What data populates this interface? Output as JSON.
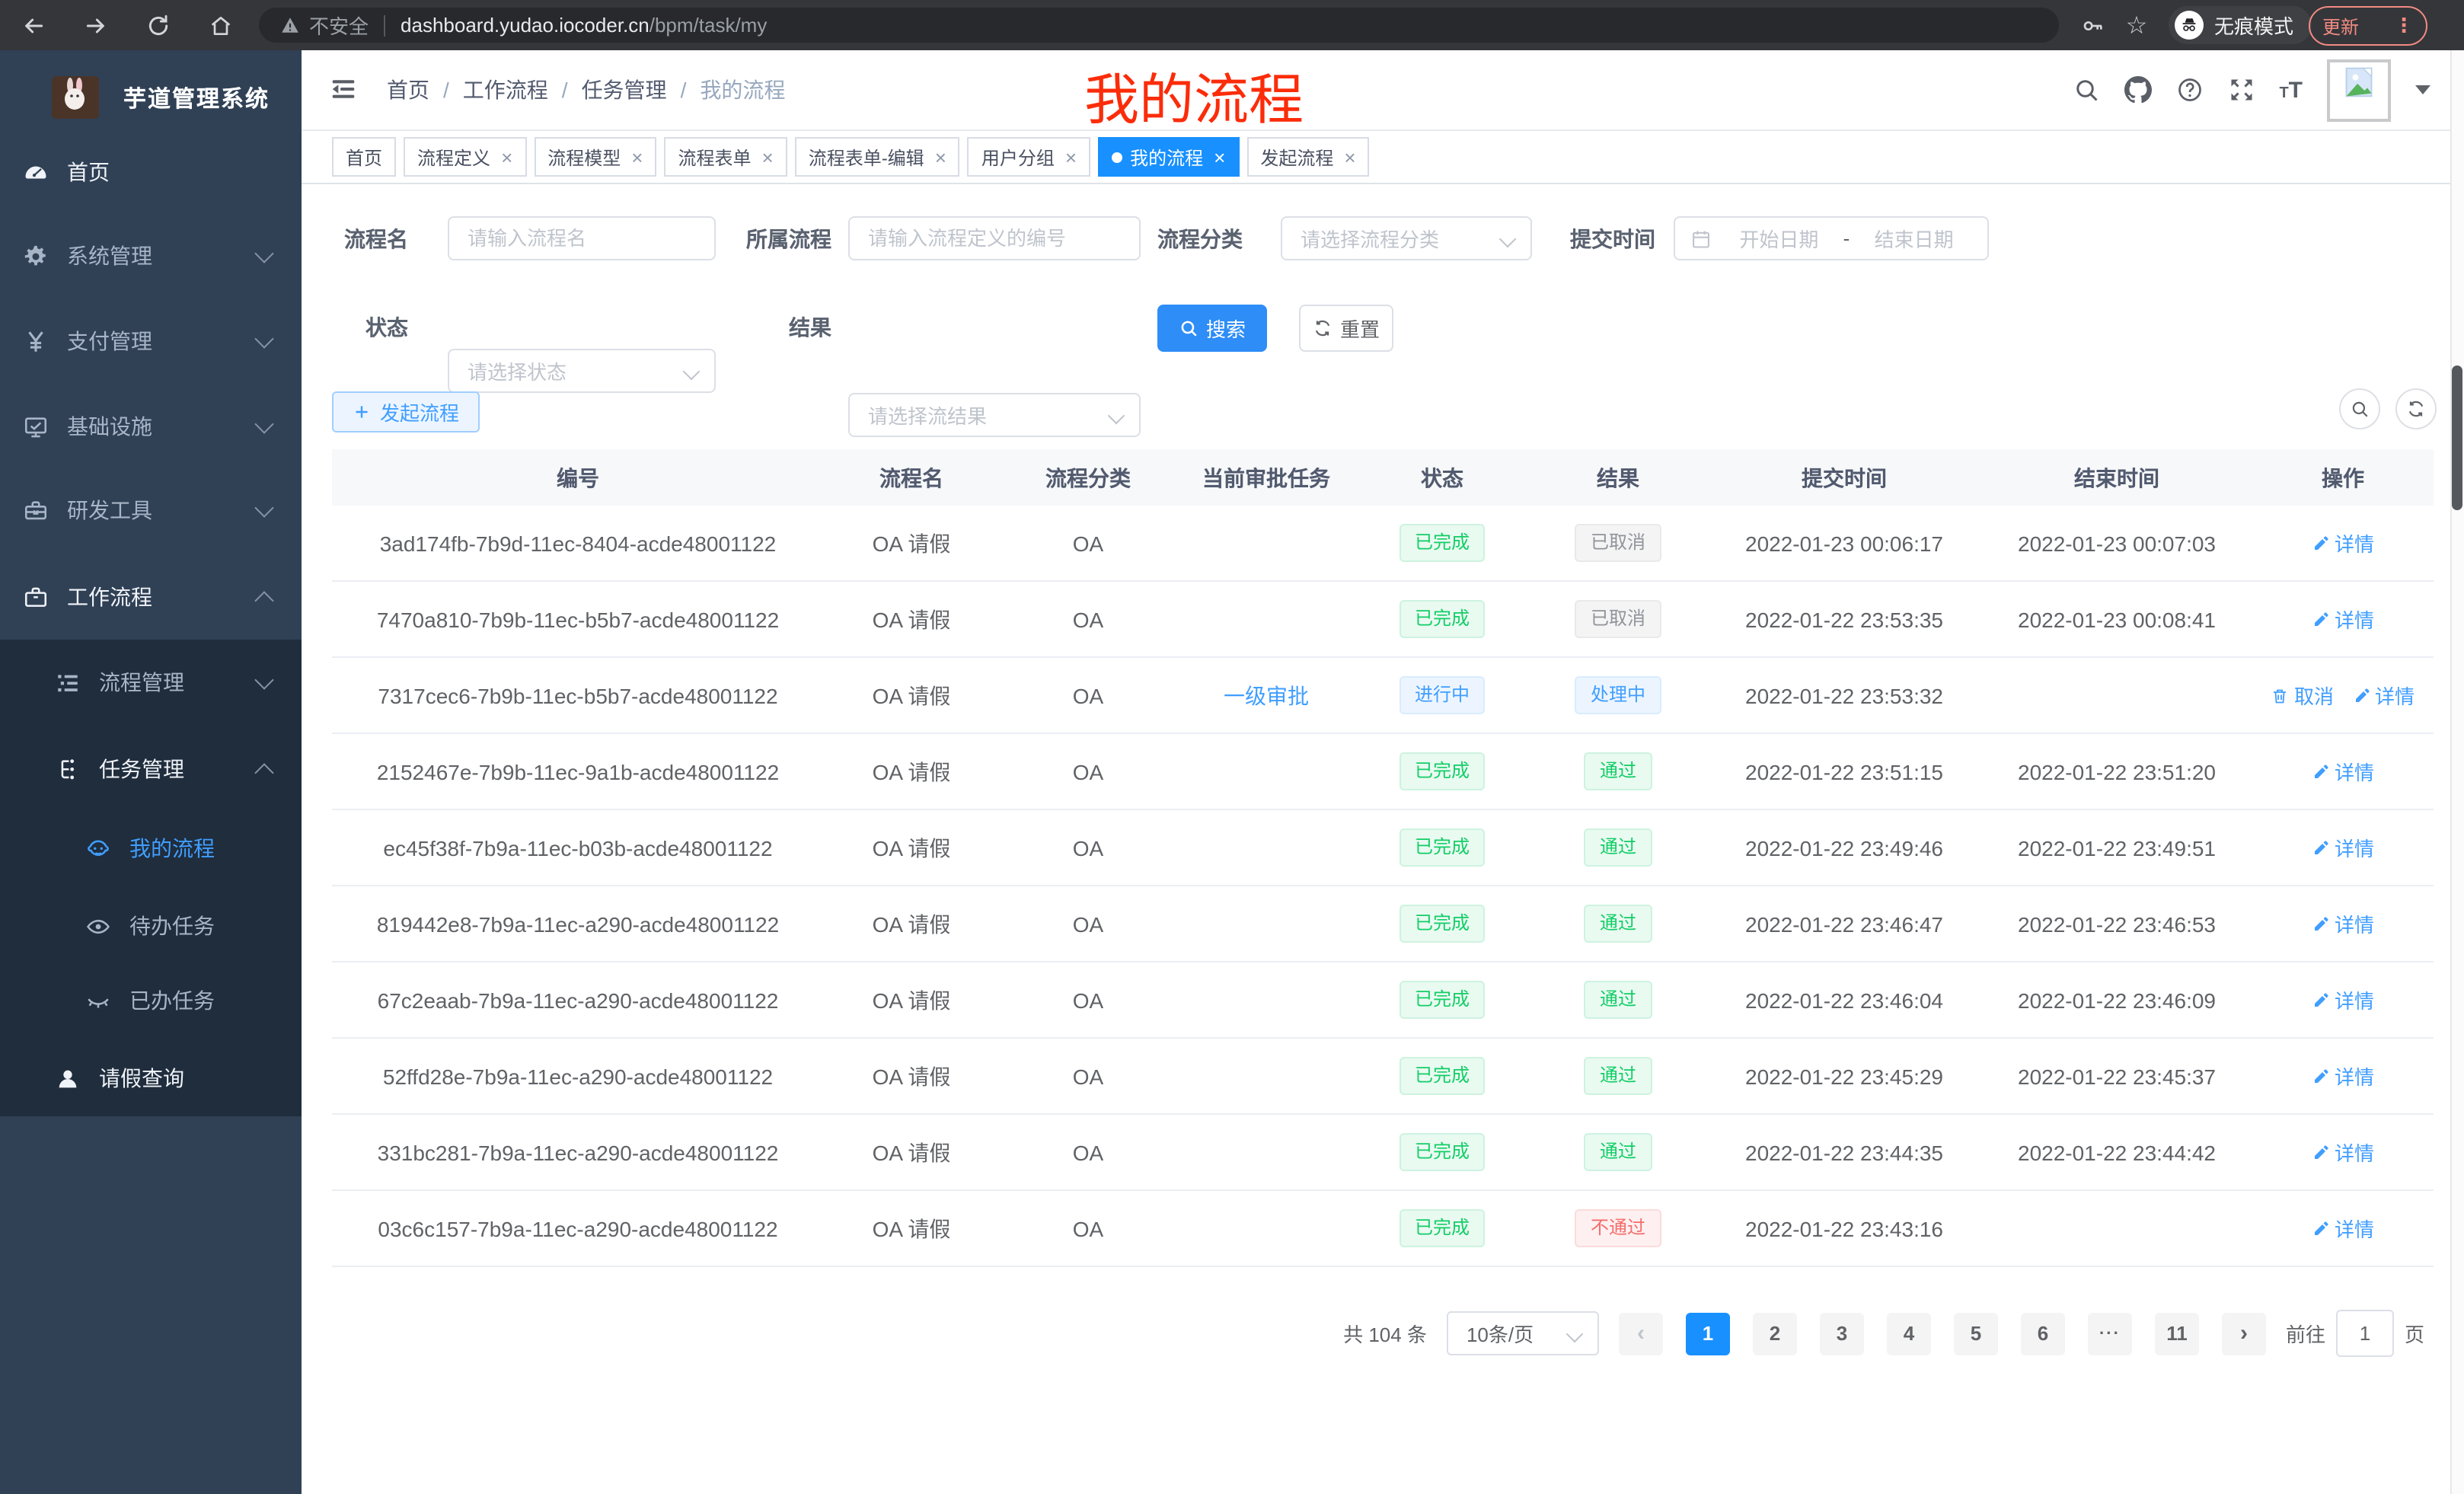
{
  "browser": {
    "security_label": "不安全",
    "url_domain": "dashboard.yudao.iocoder.cn",
    "url_path": "/bpm/task/my",
    "incognito_label": "无痕模式",
    "update_label": "更新"
  },
  "sidebar": {
    "title": "芋道管理系统",
    "menu": [
      {
        "key": "home",
        "label": "首页",
        "icon": "dashboard-icon",
        "level": 1,
        "bright": true
      },
      {
        "key": "system",
        "label": "系统管理",
        "icon": "gear-icon",
        "level": 1,
        "chevron": "down"
      },
      {
        "key": "payment",
        "label": "支付管理",
        "icon": "yen-icon",
        "level": 1,
        "chevron": "down"
      },
      {
        "key": "infra",
        "label": "基础设施",
        "icon": "monitor-icon",
        "level": 1,
        "chevron": "down"
      },
      {
        "key": "devtools",
        "label": "研发工具",
        "icon": "toolbox-icon",
        "level": 1,
        "chevron": "down"
      },
      {
        "key": "workflow",
        "label": "工作流程",
        "icon": "briefcase-icon",
        "level": 1,
        "chevron": "up",
        "bright": true
      },
      {
        "key": "process-mgmt",
        "label": "流程管理",
        "icon": "list-tree-icon",
        "level": 2,
        "chevron": "down"
      },
      {
        "key": "task-mgmt",
        "label": "任务管理",
        "icon": "flow-tree-icon",
        "level": 2,
        "chevron": "up",
        "bright": true
      },
      {
        "key": "my-process",
        "label": "我的流程",
        "icon": "face-icon",
        "level": 3,
        "active": true
      },
      {
        "key": "todo-task",
        "label": "待办任务",
        "icon": "eye-icon",
        "level": 3
      },
      {
        "key": "done-task",
        "label": "已办任务",
        "icon": "eye-closed-icon",
        "level": 3
      },
      {
        "key": "leave-query",
        "label": "请假查询",
        "icon": "user-icon",
        "level": 2,
        "bright": true
      }
    ]
  },
  "header": {
    "breadcrumb": [
      "首页",
      "工作流程",
      "任务管理",
      "我的流程"
    ],
    "annotation": "我的流程"
  },
  "tabs": [
    {
      "label": "首页"
    },
    {
      "label": "流程定义",
      "closable": true
    },
    {
      "label": "流程模型",
      "closable": true
    },
    {
      "label": "流程表单",
      "closable": true
    },
    {
      "label": "流程表单-编辑",
      "closable": true
    },
    {
      "label": "用户分组",
      "closable": true
    },
    {
      "label": "我的流程",
      "closable": true,
      "active": true
    },
    {
      "label": "发起流程",
      "closable": true
    }
  ],
  "filters": {
    "process_name": {
      "label": "流程名",
      "placeholder": "请输入流程名"
    },
    "process_def": {
      "label": "所属流程",
      "placeholder": "请输入流程定义的编号"
    },
    "category": {
      "label": "流程分类",
      "placeholder": "请选择流程分类"
    },
    "submit_time": {
      "label": "提交时间",
      "start": "开始日期",
      "sep": "-",
      "end": "结束日期"
    },
    "status": {
      "label": "状态",
      "placeholder": "请选择状态"
    },
    "result": {
      "label": "结果",
      "placeholder": "请选择流结果"
    },
    "search_label": "搜索",
    "reset_label": "重置"
  },
  "toolbar": {
    "create_label": "发起流程"
  },
  "table": {
    "columns": [
      "编号",
      "流程名",
      "流程分类",
      "当前审批任务",
      "状态",
      "结果",
      "提交时间",
      "结束时间",
      "操作"
    ],
    "rows": [
      {
        "id": "3ad174fb-7b9d-11ec-8404-acde48001122",
        "name": "OA 请假",
        "category": "OA",
        "task": "",
        "status": {
          "text": "已完成",
          "type": "success"
        },
        "result": {
          "text": "已取消",
          "type": "info"
        },
        "submit": "2022-01-23 00:06:17",
        "end": "2022-01-23 00:07:03",
        "actions": [
          {
            "label": "详情",
            "icon": "edit-icon"
          }
        ]
      },
      {
        "id": "7470a810-7b9b-11ec-b5b7-acde48001122",
        "name": "OA 请假",
        "category": "OA",
        "task": "",
        "status": {
          "text": "已完成",
          "type": "success"
        },
        "result": {
          "text": "已取消",
          "type": "info"
        },
        "submit": "2022-01-22 23:53:35",
        "end": "2022-01-23 00:08:41",
        "actions": [
          {
            "label": "详情",
            "icon": "edit-icon"
          }
        ]
      },
      {
        "id": "7317cec6-7b9b-11ec-b5b7-acde48001122",
        "name": "OA 请假",
        "category": "OA",
        "task": "一级审批",
        "status": {
          "text": "进行中",
          "type": "primary"
        },
        "result": {
          "text": "处理中",
          "type": "primary"
        },
        "submit": "2022-01-22 23:53:32",
        "end": "",
        "actions": [
          {
            "label": "取消",
            "icon": "trash-icon"
          },
          {
            "label": "详情",
            "icon": "edit-icon"
          }
        ]
      },
      {
        "id": "2152467e-7b9b-11ec-9a1b-acde48001122",
        "name": "OA 请假",
        "category": "OA",
        "task": "",
        "status": {
          "text": "已完成",
          "type": "success"
        },
        "result": {
          "text": "通过",
          "type": "success"
        },
        "submit": "2022-01-22 23:51:15",
        "end": "2022-01-22 23:51:20",
        "actions": [
          {
            "label": "详情",
            "icon": "edit-icon"
          }
        ]
      },
      {
        "id": "ec45f38f-7b9a-11ec-b03b-acde48001122",
        "name": "OA 请假",
        "category": "OA",
        "task": "",
        "status": {
          "text": "已完成",
          "type": "success"
        },
        "result": {
          "text": "通过",
          "type": "success"
        },
        "submit": "2022-01-22 23:49:46",
        "end": "2022-01-22 23:49:51",
        "actions": [
          {
            "label": "详情",
            "icon": "edit-icon"
          }
        ]
      },
      {
        "id": "819442e8-7b9a-11ec-a290-acde48001122",
        "name": "OA 请假",
        "category": "OA",
        "task": "",
        "status": {
          "text": "已完成",
          "type": "success"
        },
        "result": {
          "text": "通过",
          "type": "success"
        },
        "submit": "2022-01-22 23:46:47",
        "end": "2022-01-22 23:46:53",
        "actions": [
          {
            "label": "详情",
            "icon": "edit-icon"
          }
        ]
      },
      {
        "id": "67c2eaab-7b9a-11ec-a290-acde48001122",
        "name": "OA 请假",
        "category": "OA",
        "task": "",
        "status": {
          "text": "已完成",
          "type": "success"
        },
        "result": {
          "text": "通过",
          "type": "success"
        },
        "submit": "2022-01-22 23:46:04",
        "end": "2022-01-22 23:46:09",
        "actions": [
          {
            "label": "详情",
            "icon": "edit-icon"
          }
        ]
      },
      {
        "id": "52ffd28e-7b9a-11ec-a290-acde48001122",
        "name": "OA 请假",
        "category": "OA",
        "task": "",
        "status": {
          "text": "已完成",
          "type": "success"
        },
        "result": {
          "text": "通过",
          "type": "success"
        },
        "submit": "2022-01-22 23:45:29",
        "end": "2022-01-22 23:45:37",
        "actions": [
          {
            "label": "详情",
            "icon": "edit-icon"
          }
        ]
      },
      {
        "id": "331bc281-7b9a-11ec-a290-acde48001122",
        "name": "OA 请假",
        "category": "OA",
        "task": "",
        "status": {
          "text": "已完成",
          "type": "success"
        },
        "result": {
          "text": "通过",
          "type": "success"
        },
        "submit": "2022-01-22 23:44:35",
        "end": "2022-01-22 23:44:42",
        "actions": [
          {
            "label": "详情",
            "icon": "edit-icon"
          }
        ]
      },
      {
        "id": "03c6c157-7b9a-11ec-a290-acde48001122",
        "name": "OA 请假",
        "category": "OA",
        "task": "",
        "status": {
          "text": "已完成",
          "type": "success"
        },
        "result": {
          "text": "不通过",
          "type": "danger"
        },
        "submit": "2022-01-22 23:43:16",
        "end": "",
        "actions": [
          {
            "label": "详情",
            "icon": "edit-icon"
          }
        ]
      }
    ]
  },
  "pagination": {
    "total_label": "共 104 条",
    "page_size": "10条/页",
    "prev_label": "‹",
    "next_label": "›",
    "pages": [
      {
        "label": "1",
        "active": true
      },
      {
        "label": "2"
      },
      {
        "label": "3"
      },
      {
        "label": "4"
      },
      {
        "label": "5"
      },
      {
        "label": "6"
      },
      {
        "label": "···",
        "ellipsis": true
      },
      {
        "label": "11"
      }
    ],
    "goto_label": "前往",
    "goto_value": "1",
    "goto_suffix": "页"
  }
}
